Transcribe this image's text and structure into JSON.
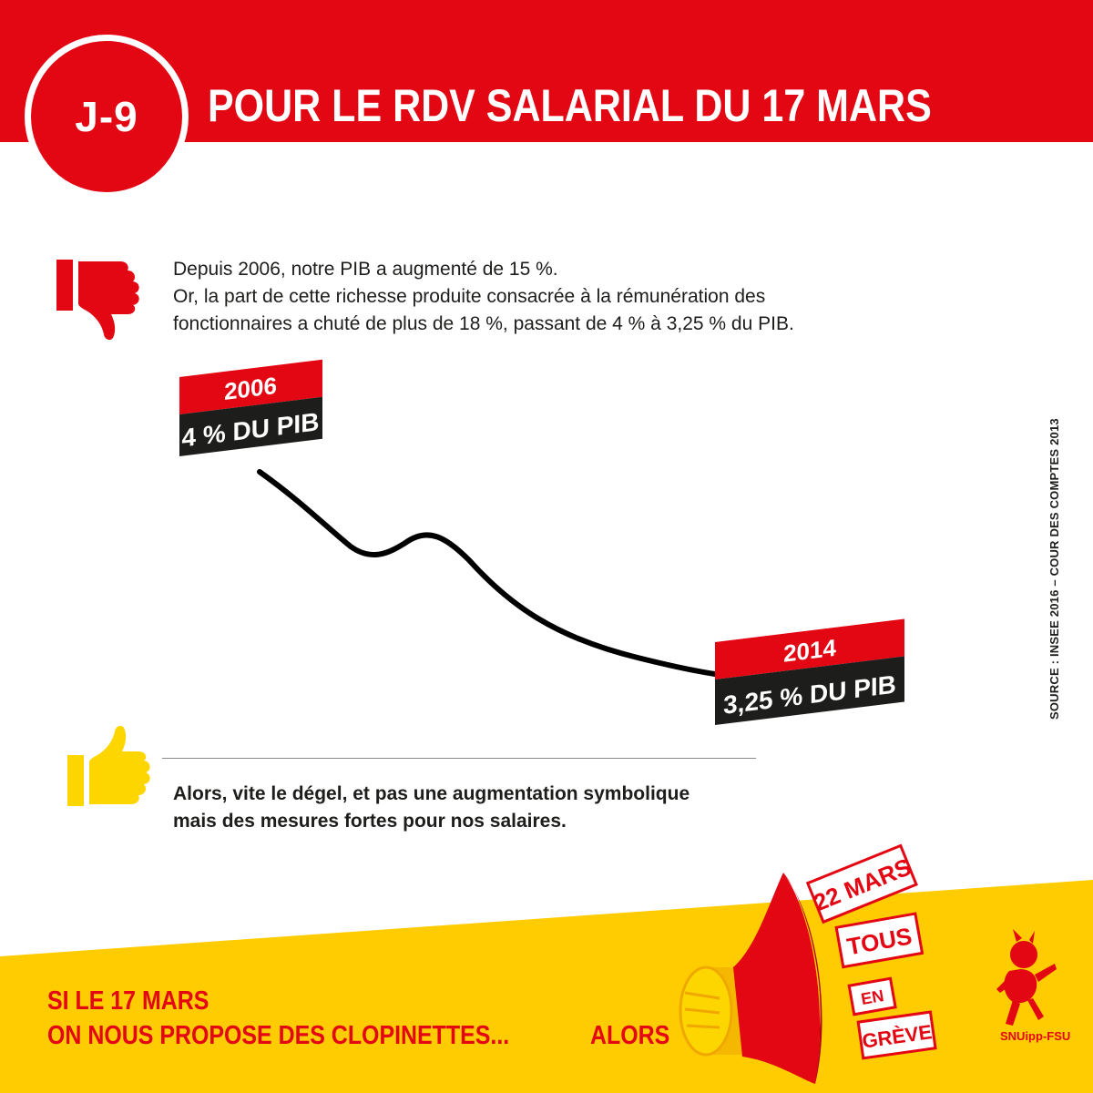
{
  "header": {
    "badge": "J-9",
    "title": "POUR LE RDV SALARIAL DU 17 MARS"
  },
  "intro": {
    "line1": "Depuis 2006, notre PIB a augmenté de 15 %.",
    "line2": "Or, la part de cette richesse produite consacrée à la rémunération des",
    "line3": "fonctionnaires a chuté de plus de 18 %, passant de 4 % à 3,25 % du PIB."
  },
  "chart_data": {
    "type": "line",
    "x": [
      2006,
      2014
    ],
    "values": [
      4,
      3.25
    ],
    "unit": "% du PIB",
    "labels": [
      {
        "year": "2006",
        "value": "4 % DU PIB"
      },
      {
        "year": "2014",
        "value": "3,25 % DU PIB"
      }
    ],
    "title": "",
    "xlabel": "",
    "ylabel": ""
  },
  "source": "SOURCE : INSEE 2016 – COUR DES COMPTES 2013",
  "conclusion": {
    "line1": "Alors, vite le dégel, et pas une augmentation symbolique",
    "line2": "mais des mesures fortes pour nos salaires."
  },
  "footer": {
    "line1": "SI LE 17 MARS",
    "line2": "ON NOUS PROPOSE DES CLOPINETTES...",
    "alors": "ALORS",
    "stamps": [
      "22 MARS",
      "TOUS",
      "EN",
      "GRÈVE"
    ]
  },
  "logo": {
    "name": "SNUipp-FSU"
  },
  "icons": {
    "thumbs_down": "thumbs-down-icon",
    "thumbs_up": "thumbs-up-icon",
    "megaphone": "megaphone-icon",
    "mascot": "mascot-icon"
  },
  "colors": {
    "red": "#e30613",
    "black": "#1d1d1b",
    "yellow": "#fecc00",
    "thumb_up": "#fdd600"
  }
}
